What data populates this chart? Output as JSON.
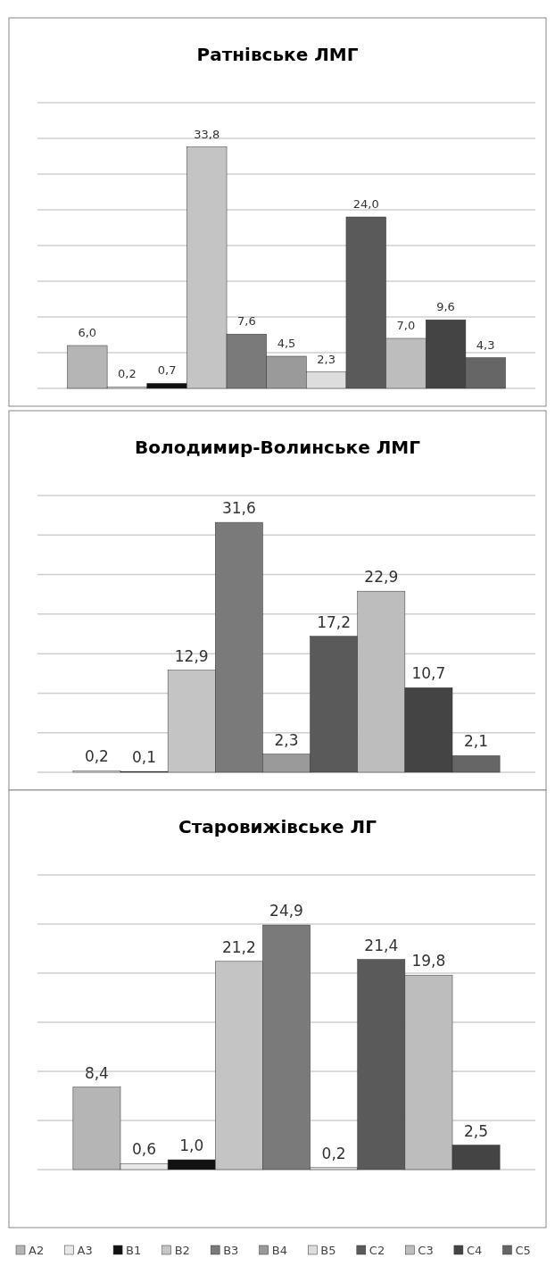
{
  "chart_data": [
    {
      "type": "bar",
      "title": "Ратнівське ЛМГ",
      "categories": [
        null
      ],
      "ylim": [
        0,
        40
      ],
      "yticks": [
        {
          "value": 0,
          "label": null
        },
        {
          "value": 5,
          "label": null
        },
        {
          "value": 10,
          "label": null
        },
        {
          "value": 15,
          "label": null
        },
        {
          "value": 20,
          "label": null
        },
        {
          "value": 25,
          "label": null
        },
        {
          "value": 30,
          "label": null
        },
        {
          "value": 35,
          "label": null
        },
        {
          "value": 40,
          "label": null
        }
      ],
      "grid": true,
      "series": [
        {
          "color": "#b5b5b5",
          "values": [
            6.0
          ],
          "value_labels": [
            "6,0"
          ]
        },
        {
          "color": "#e8e8e8",
          "values": [
            0.2
          ],
          "value_labels": [
            "0,2"
          ]
        },
        {
          "color": "#111111",
          "values": [
            0.7
          ],
          "value_labels": [
            "0,7"
          ]
        },
        {
          "color": "#c4c4c4",
          "values": [
            33.8
          ],
          "value_labels": [
            "33,8"
          ]
        },
        {
          "color": "#7a7a7a",
          "values": [
            7.6
          ],
          "value_labels": [
            "7,6"
          ]
        },
        {
          "color": "#9a9a9a",
          "values": [
            4.5
          ],
          "value_labels": [
            "4,5"
          ]
        },
        {
          "color": "#dddddd",
          "values": [
            2.3
          ],
          "value_labels": [
            "2,3"
          ]
        },
        {
          "color": "#5a5a5a",
          "values": [
            24.0
          ],
          "value_labels": [
            "24,0"
          ]
        },
        {
          "color": "#bdbdbd",
          "values": [
            7.0
          ],
          "value_labels": [
            "7,0"
          ]
        },
        {
          "color": "#444444",
          "values": [
            9.6
          ],
          "value_labels": [
            "9,6"
          ]
        },
        {
          "color": "#666666",
          "values": [
            4.3
          ],
          "value_labels": [
            "4,3"
          ]
        }
      ]
    },
    {
      "type": "bar",
      "title": "Володимир-Волинське ЛМГ",
      "categories": [
        null
      ],
      "ylim": [
        0,
        35
      ],
      "yticks": [
        {
          "value": 0,
          "label": null
        },
        {
          "value": 5,
          "label": null
        },
        {
          "value": 10,
          "label": null
        },
        {
          "value": 15,
          "label": null
        },
        {
          "value": 20,
          "label": null
        },
        {
          "value": 25,
          "label": null
        },
        {
          "value": 30,
          "label": null
        },
        {
          "value": 35,
          "label": null
        }
      ],
      "grid": true,
      "series": [
        {
          "color": "#e8e8e8",
          "values": [
            0.2
          ],
          "value_labels": [
            "0,2"
          ]
        },
        {
          "color": "#111111",
          "values": [
            0.1
          ],
          "value_labels": [
            "0,1"
          ]
        },
        {
          "color": "#c4c4c4",
          "values": [
            12.9
          ],
          "value_labels": [
            "12,9"
          ]
        },
        {
          "color": "#7a7a7a",
          "values": [
            31.6
          ],
          "value_labels": [
            "31,6"
          ]
        },
        {
          "color": "#9a9a9a",
          "values": [
            2.3
          ],
          "value_labels": [
            "2,3"
          ]
        },
        {
          "color": "#5a5a5a",
          "values": [
            17.2
          ],
          "value_labels": [
            "17,2"
          ]
        },
        {
          "color": "#bdbdbd",
          "values": [
            22.9
          ],
          "value_labels": [
            "22,9"
          ]
        },
        {
          "color": "#444444",
          "values": [
            10.7
          ],
          "value_labels": [
            "10,7"
          ]
        },
        {
          "color": "#666666",
          "values": [
            2.1
          ],
          "value_labels": [
            "2,1"
          ]
        }
      ]
    },
    {
      "type": "bar",
      "title": "Старовижівське ЛГ",
      "categories": [
        null
      ],
      "ylim": [
        0,
        30
      ],
      "yticks": [
        {
          "value": 0,
          "label": null
        },
        {
          "value": 5,
          "label": null
        },
        {
          "value": 10,
          "label": null
        },
        {
          "value": 15,
          "label": null
        },
        {
          "value": 20,
          "label": null
        },
        {
          "value": 25,
          "label": null
        },
        {
          "value": 30,
          "label": null
        }
      ],
      "grid": true,
      "legend": "bottom",
      "series": [
        {
          "name": "A2",
          "color": "#b5b5b5",
          "values": [
            8.4
          ],
          "value_labels": [
            "8,4"
          ]
        },
        {
          "name": "A3",
          "color": "#e8e8e8",
          "values": [
            0.6
          ],
          "value_labels": [
            "0,6"
          ]
        },
        {
          "name": "B1",
          "color": "#111111",
          "values": [
            1.0
          ],
          "value_labels": [
            "1,0"
          ]
        },
        {
          "name": "B2",
          "color": "#c4c4c4",
          "values": [
            21.2
          ],
          "value_labels": [
            "21,2"
          ]
        },
        {
          "name": "B3",
          "color": "#7a7a7a",
          "values": [
            24.9
          ],
          "value_labels": [
            "24,9"
          ]
        },
        {
          "name": "B4",
          "color": "#9a9a9a",
          "values": [
            null
          ],
          "value_labels": [
            null
          ]
        },
        {
          "name": "B5",
          "color": "#dddddd",
          "values": [
            0.2
          ],
          "value_labels": [
            "0,2"
          ]
        },
        {
          "name": "C2",
          "color": "#5a5a5a",
          "values": [
            21.4
          ],
          "value_labels": [
            "21,4"
          ]
        },
        {
          "name": "C3",
          "color": "#bdbdbd",
          "values": [
            19.8
          ],
          "value_labels": [
            "19,8"
          ]
        },
        {
          "name": "C4",
          "color": "#444444",
          "values": [
            2.5
          ],
          "value_labels": [
            "2,5"
          ]
        },
        {
          "name": "C5",
          "color": "#666666",
          "values": [
            null
          ],
          "value_labels": [
            null
          ]
        }
      ]
    }
  ]
}
